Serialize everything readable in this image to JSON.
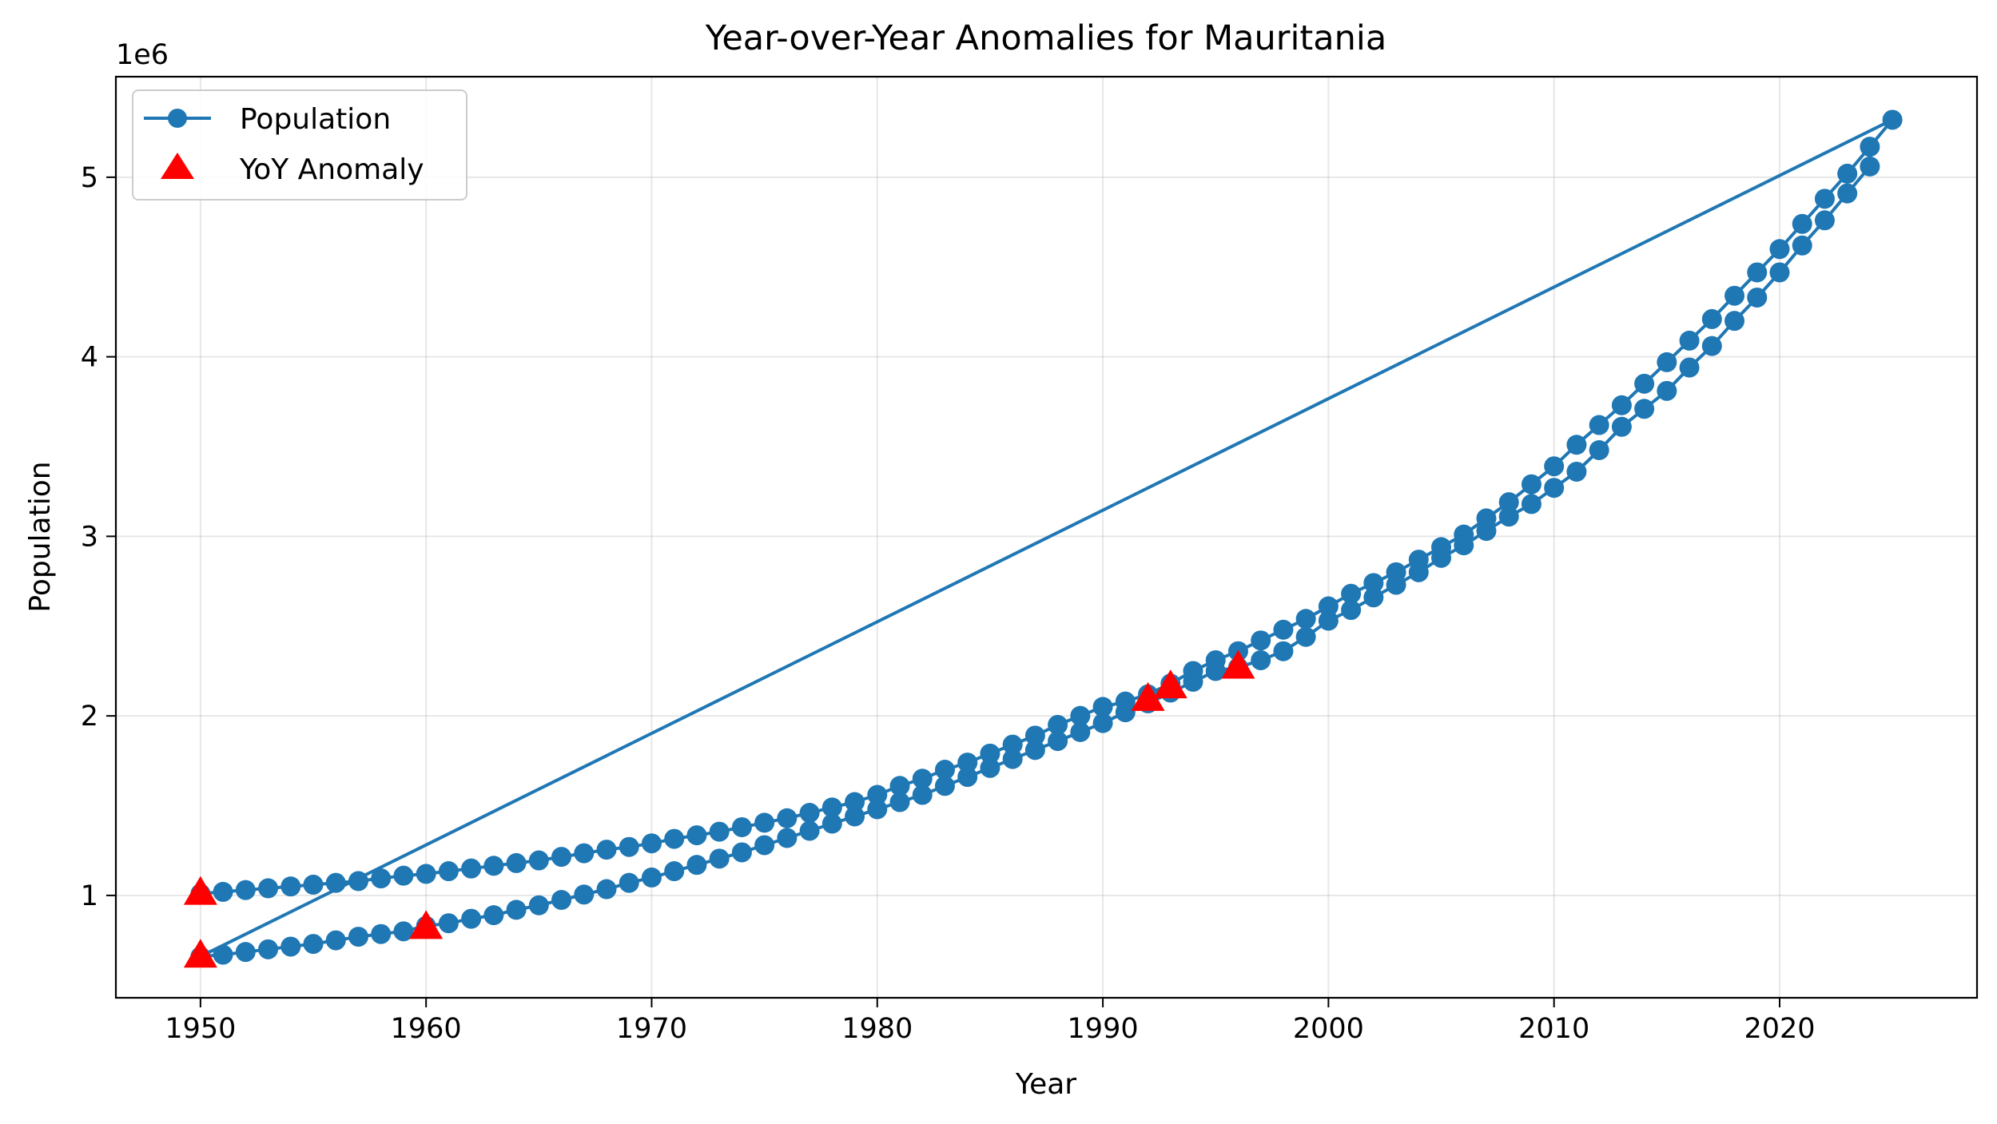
{
  "chart_data": {
    "type": "line",
    "title": "Year-over-Year Anomalies for Mauritania",
    "xlabel": "Year",
    "ylabel": "Population",
    "y_offset_label": "1e6",
    "xlim": [
      1946.25,
      2028.75
    ],
    "ylim": [
      0.43,
      5.56
    ],
    "y_scale_exponent": 6,
    "x_ticks": [
      1950,
      1960,
      1970,
      1980,
      1990,
      2000,
      2010,
      2020
    ],
    "x_tick_labels": [
      "1950",
      "1960",
      "1970",
      "1980",
      "1990",
      "2000",
      "2010",
      "2020"
    ],
    "y_ticks": [
      1,
      2,
      3,
      4,
      5
    ],
    "y_tick_labels": [
      "1",
      "2",
      "3",
      "4",
      "5"
    ],
    "grid": true,
    "legend": {
      "position": "top-left",
      "entries": [
        "Population",
        "YoY Anomaly"
      ]
    },
    "series": [
      {
        "name": "Population",
        "marker": "circle",
        "color": "#1f77b4",
        "x": [
          1950,
          1951,
          1952,
          1953,
          1954,
          1955,
          1956,
          1957,
          1958,
          1959,
          1960,
          1961,
          1962,
          1963,
          1964,
          1965,
          1966,
          1967,
          1968,
          1969,
          1970,
          1971,
          1972,
          1973,
          1974,
          1975,
          1976,
          1977,
          1978,
          1979,
          1980,
          1981,
          1982,
          1983,
          1984,
          1985,
          1986,
          1987,
          1988,
          1989,
          1990,
          1991,
          1992,
          1993,
          1994,
          1995,
          1996,
          1997,
          1998,
          1999,
          2000,
          2001,
          2002,
          2003,
          2004,
          2005,
          2006,
          2007,
          2008,
          2009,
          2010,
          2011,
          2012,
          2013,
          2014,
          2015,
          2016,
          2017,
          2018,
          2019,
          2020,
          2021,
          2022,
          2023,
          2024,
          2025,
          1950,
          1951,
          1952,
          1953,
          1954,
          1955,
          1956,
          1957,
          1958,
          1959,
          1960,
          1961,
          1962,
          1963,
          1964,
          1965,
          1966,
          1967,
          1968,
          1969,
          1970,
          1971,
          1972,
          1973,
          1974,
          1975,
          1976,
          1977,
          1978,
          1979,
          1980,
          1981,
          1982,
          1983,
          1984,
          1985,
          1986,
          1987,
          1988,
          1989,
          1990,
          1991,
          1992,
          1993,
          1994,
          1995,
          1996,
          1997,
          1998,
          1999,
          2000,
          2001,
          2002,
          2003,
          2004,
          2005,
          2006,
          2007,
          2008,
          2009,
          2010,
          2011,
          2012,
          2013,
          2014,
          2015,
          2016,
          2017,
          2018,
          2019,
          2020,
          2021,
          2022,
          2023,
          2024
        ],
        "y": [
          1.01,
          1.02,
          1.03,
          1.04,
          1.05,
          1.06,
          1.07,
          1.08,
          1.095,
          1.11,
          1.12,
          1.135,
          1.15,
          1.165,
          1.18,
          1.195,
          1.215,
          1.235,
          1.255,
          1.27,
          1.29,
          1.315,
          1.335,
          1.355,
          1.38,
          1.405,
          1.43,
          1.46,
          1.49,
          1.52,
          1.56,
          1.61,
          1.65,
          1.7,
          1.74,
          1.79,
          1.84,
          1.89,
          1.95,
          2.0,
          2.05,
          2.08,
          2.12,
          2.18,
          2.25,
          2.31,
          2.36,
          2.42,
          2.48,
          2.54,
          2.61,
          2.68,
          2.74,
          2.8,
          2.87,
          2.94,
          3.01,
          3.1,
          3.19,
          3.29,
          3.39,
          3.51,
          3.62,
          3.73,
          3.85,
          3.97,
          4.09,
          4.21,
          4.34,
          4.47,
          4.6,
          4.74,
          4.88,
          5.02,
          5.17,
          5.32,
          0.66,
          0.67,
          0.685,
          0.7,
          0.715,
          0.73,
          0.75,
          0.77,
          0.785,
          0.8,
          0.83,
          0.845,
          0.87,
          0.89,
          0.92,
          0.945,
          0.975,
          1.005,
          1.035,
          1.07,
          1.1,
          1.135,
          1.17,
          1.205,
          1.24,
          1.28,
          1.32,
          1.36,
          1.4,
          1.44,
          1.48,
          1.52,
          1.56,
          1.61,
          1.66,
          1.71,
          1.76,
          1.81,
          1.86,
          1.91,
          1.96,
          2.02,
          2.07,
          2.13,
          2.19,
          2.25,
          2.27,
          2.31,
          2.36,
          2.44,
          2.53,
          2.59,
          2.66,
          2.73,
          2.8,
          2.88,
          2.95,
          3.03,
          3.11,
          3.18,
          3.27,
          3.36,
          3.48,
          3.61,
          3.71,
          3.81,
          3.94,
          4.06,
          4.2,
          4.33,
          4.47,
          4.62,
          4.76,
          4.91,
          5.06
        ]
      },
      {
        "name": "YoY Anomaly",
        "marker": "triangle",
        "color": "#ff0000",
        "x": [
          1950,
          1950,
          1960,
          1992,
          1993,
          1996
        ],
        "y": [
          1.01,
          0.66,
          0.82,
          2.09,
          2.16,
          2.27
        ]
      }
    ]
  }
}
